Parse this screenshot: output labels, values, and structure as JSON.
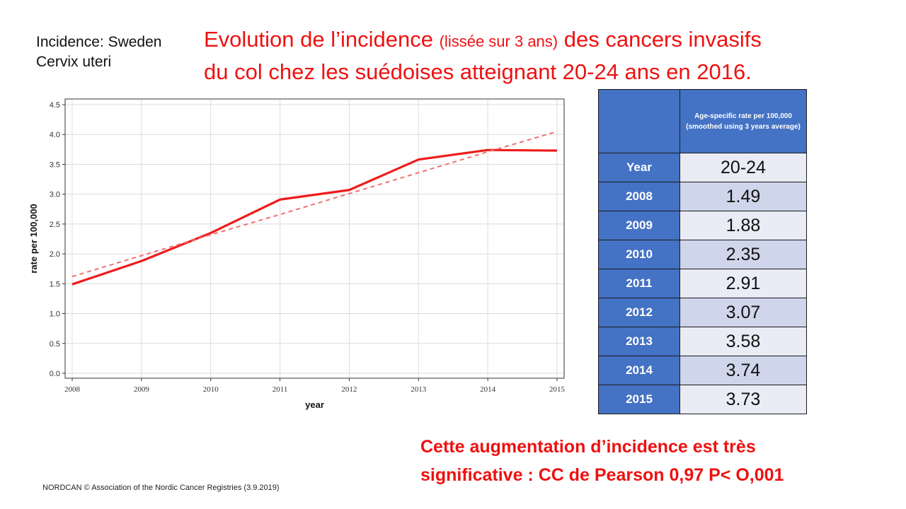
{
  "caption": {
    "line1": "Incidence: Sweden",
    "line2": "Cervix uteri"
  },
  "title": {
    "part1": "Evolution de l’incidence ",
    "paren": "(lissée sur 3 ans)",
    "part2": " des cancers invasifs",
    "line2": "du col chez les suédoises atteignant 20-24 ans en 2016."
  },
  "chart_data": {
    "type": "line",
    "x": [
      2008,
      2009,
      2010,
      2011,
      2012,
      2013,
      2014,
      2015
    ],
    "series": [
      {
        "values": [
          1.49,
          1.88,
          2.35,
          2.91,
          3.07,
          3.58,
          3.74,
          3.73
        ],
        "color": "#ee1c1c",
        "style": "solid"
      },
      {
        "values": [
          1.62,
          1.97,
          2.32,
          2.66,
          3.01,
          3.36,
          3.71,
          4.05
        ],
        "color": "#f07070",
        "style": "dashed",
        "kind": "trend"
      }
    ],
    "xlabel": "year",
    "ylabel": "rate per 100,000",
    "xticks": [
      "2008",
      "2009",
      "2010",
      "2011",
      "2012",
      "2013",
      "2014",
      "2015"
    ],
    "yticks": [
      "0.0",
      "0.5",
      "1.0",
      "1.5",
      "2.0",
      "2.5",
      "3.0",
      "3.5",
      "4.0",
      "4.5"
    ],
    "ylim": [
      0,
      4.5
    ],
    "grid": true
  },
  "table": {
    "header": "Age-specific rate per 100,000 (smoothed using 3 years average)",
    "year_label": "Year",
    "age_group": "20-24",
    "rows": [
      {
        "year": "2008",
        "value": "1.49"
      },
      {
        "year": "2009",
        "value": "1.88"
      },
      {
        "year": "2010",
        "value": "2.35"
      },
      {
        "year": "2011",
        "value": "2.91"
      },
      {
        "year": "2012",
        "value": "3.07"
      },
      {
        "year": "2013",
        "value": "3.58"
      },
      {
        "year": "2014",
        "value": "3.74"
      },
      {
        "year": "2015",
        "value": "3.73"
      }
    ]
  },
  "conclusion": {
    "line1": "Cette augmentation d’incidence est très",
    "line2": "significative : CC de Pearson 0,97 P< O,001"
  },
  "source": "NORDCAN © Association of the Nordic Cancer Registries (3.9.2019)"
}
